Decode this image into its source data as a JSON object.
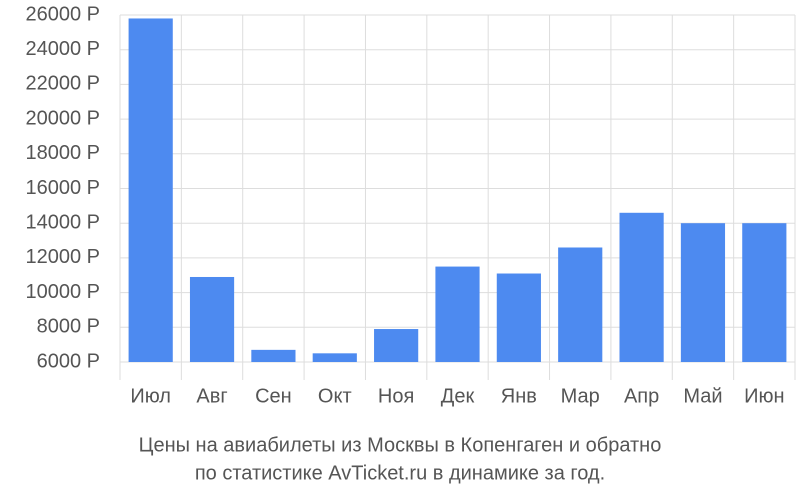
{
  "chart_data": {
    "type": "bar",
    "title": [
      "Цены на авиабилеты из Москвы в Копенгаген и обратно",
      "по статистике AvTicket.ru в динамике за год."
    ],
    "categories": [
      "Июл",
      "Авг",
      "Сен",
      "Окт",
      "Ноя",
      "Дек",
      "Янв",
      "Мар",
      "Апр",
      "Май",
      "Июн"
    ],
    "values": [
      25800,
      10900,
      6700,
      6500,
      7900,
      11500,
      11100,
      12600,
      14600,
      14000,
      14000
    ],
    "color": "#4d8af0",
    "ylim": [
      6000,
      26000
    ],
    "yticks": [
      {
        "value": 6000,
        "label": "6000 Р"
      },
      {
        "value": 8000,
        "label": "8000 Р"
      },
      {
        "value": 10000,
        "label": "10000 Р"
      },
      {
        "value": 12000,
        "label": "12000 Р"
      },
      {
        "value": 14000,
        "label": "14000 Р"
      },
      {
        "value": 16000,
        "label": "16000 Р"
      },
      {
        "value": 18000,
        "label": "18000 Р"
      },
      {
        "value": 20000,
        "label": "20000 Р"
      },
      {
        "value": 22000,
        "label": "22000 Р"
      },
      {
        "value": 24000,
        "label": "24000 Р"
      },
      {
        "value": 26000,
        "label": "26000 Р"
      }
    ],
    "grid": true
  }
}
